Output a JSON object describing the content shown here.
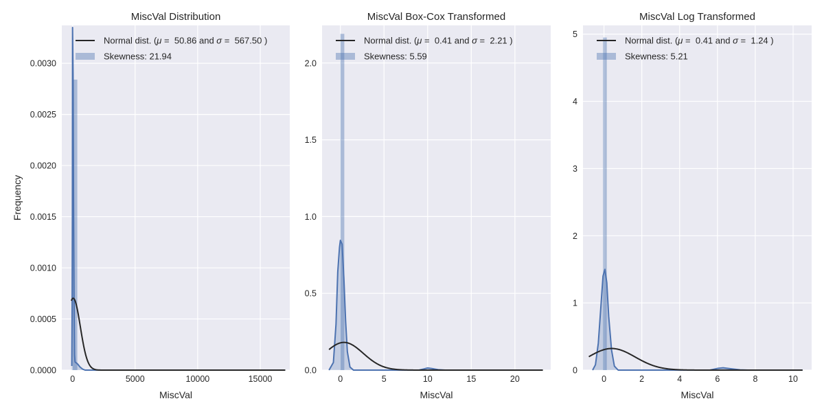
{
  "chart_data": [
    {
      "type": "histogram",
      "title": "MiscVal Distribution",
      "xlabel": "MiscVal",
      "ylabel": "Frequency",
      "xlim": [
        -860,
        17360
      ],
      "ylim": [
        0,
        0.00337
      ],
      "xticks": [
        0,
        5000,
        10000,
        15000
      ],
      "xtick_labels": [
        "0",
        "5000",
        "10000",
        "15000"
      ],
      "yticks": [
        0,
        0.0005,
        0.001,
        0.0015,
        0.002,
        0.0025,
        0.003
      ],
      "ytick_labels": [
        "0.0000",
        "0.0005",
        "0.0010",
        "0.0015",
        "0.0020",
        "0.0025",
        "0.0030"
      ],
      "bars": [
        {
          "x0": 0,
          "x1": 380,
          "h": 0.00284
        }
      ],
      "kde": [
        [
          -60,
          4e-05
        ],
        [
          -35,
          0.0006
        ],
        [
          -15,
          0.0015
        ],
        [
          0,
          0.00335
        ],
        [
          40,
          0.0029
        ],
        [
          80,
          0.0016
        ],
        [
          120,
          0.0007
        ],
        [
          160,
          0.00015
        ],
        [
          200,
          8e-05
        ],
        [
          400,
          6e-05
        ],
        [
          600,
          3e-05
        ],
        [
          800,
          1e-05
        ],
        [
          1000,
          0.0
        ],
        [
          17000,
          0.0
        ]
      ],
      "normal": {
        "mu": 50.86,
        "sigma": 567.5,
        "x_range": [
          -100,
          17000
        ]
      },
      "legend": {
        "normal_prefix": "Normal dist. (",
        "mu_symbol": "μ",
        "mu_text": " =  50.86 and ",
        "sigma_symbol": "σ",
        "sigma_text": " =  567.50 )",
        "skewness": "Skewness: 21.94"
      }
    },
    {
      "type": "histogram",
      "title": "MiscVal Box-Cox Transformed",
      "xlabel": "MiscVal",
      "ylabel": "",
      "xlim": [
        -2.1,
        24.1
      ],
      "ylim": [
        0,
        2.245
      ],
      "xticks": [
        0,
        5,
        10,
        15,
        20
      ],
      "xtick_labels": [
        "0",
        "5",
        "10",
        "15",
        "20"
      ],
      "yticks": [
        0,
        0.5,
        1.0,
        1.5,
        2.0
      ],
      "ytick_labels": [
        "0.0",
        "0.5",
        "1.0",
        "1.5",
        "2.0"
      ],
      "bars": [
        {
          "x0": 0.0,
          "x1": 0.45,
          "h": 2.19
        }
      ],
      "kde": [
        [
          -1.3,
          0.0
        ],
        [
          -0.8,
          0.05
        ],
        [
          -0.5,
          0.3
        ],
        [
          -0.3,
          0.64
        ],
        [
          -0.1,
          0.8
        ],
        [
          0.0,
          0.845
        ],
        [
          0.2,
          0.82
        ],
        [
          0.4,
          0.6
        ],
        [
          0.6,
          0.32
        ],
        [
          0.8,
          0.12
        ],
        [
          1.1,
          0.02
        ],
        [
          1.5,
          0.0
        ],
        [
          9.0,
          0.0
        ],
        [
          9.6,
          0.008
        ],
        [
          10.0,
          0.014
        ],
        [
          10.5,
          0.01
        ],
        [
          11.2,
          0.003
        ],
        [
          12.0,
          0.0
        ],
        [
          23.2,
          0.0
        ]
      ],
      "normal": {
        "mu": 0.41,
        "sigma": 2.21,
        "x_range": [
          -1.3,
          23.2
        ]
      },
      "legend": {
        "normal_prefix": "Normal dist. (",
        "mu_symbol": "μ",
        "mu_text": " =  0.41 and ",
        "sigma_symbol": "σ",
        "sigma_text": " =  2.21 )",
        "skewness": "Skewness: 5.59"
      }
    },
    {
      "type": "histogram",
      "title": "MiscVal Log Transformed",
      "xlabel": "MiscVal",
      "ylabel": "",
      "xlim": [
        -1.11,
        10.98
      ],
      "ylim": [
        0,
        5.13
      ],
      "xticks": [
        0,
        2,
        4,
        6,
        8,
        10
      ],
      "xtick_labels": [
        "0",
        "2",
        "4",
        "6",
        "8",
        "10"
      ],
      "yticks": [
        0,
        1,
        2,
        3,
        4,
        5
      ],
      "ytick_labels": [
        "0",
        "1",
        "2",
        "3",
        "4",
        "5"
      ],
      "bars": [
        {
          "x0": -0.05,
          "x1": 0.15,
          "h": 4.95
        }
      ],
      "kde": [
        [
          -0.6,
          0.0
        ],
        [
          -0.45,
          0.08
        ],
        [
          -0.3,
          0.4
        ],
        [
          -0.15,
          1.0
        ],
        [
          -0.05,
          1.4
        ],
        [
          0.05,
          1.5
        ],
        [
          0.15,
          1.3
        ],
        [
          0.25,
          0.8
        ],
        [
          0.4,
          0.3
        ],
        [
          0.55,
          0.06
        ],
        [
          0.75,
          0.0
        ],
        [
          5.6,
          0.0
        ],
        [
          6.0,
          0.025
        ],
        [
          6.3,
          0.035
        ],
        [
          6.7,
          0.02
        ],
        [
          7.2,
          0.004
        ],
        [
          7.6,
          0.0
        ],
        [
          10.5,
          0.0
        ]
      ],
      "normal": {
        "mu": 0.41,
        "sigma": 1.24,
        "x_range": [
          -0.8,
          10.5
        ]
      },
      "legend": {
        "normal_prefix": "Normal dist. (",
        "mu_symbol": "μ",
        "mu_text": " =  0.41 and ",
        "sigma_symbol": "σ",
        "sigma_text": " =  1.24 )",
        "skewness": "Skewness: 5.21"
      }
    }
  ],
  "colors": {
    "axes_bg": "#EAEAF2",
    "grid": "#FFFFFF",
    "hist": "#4C72B0",
    "kde": "#4C72B0",
    "normal": "#262626",
    "text": "#262626"
  }
}
